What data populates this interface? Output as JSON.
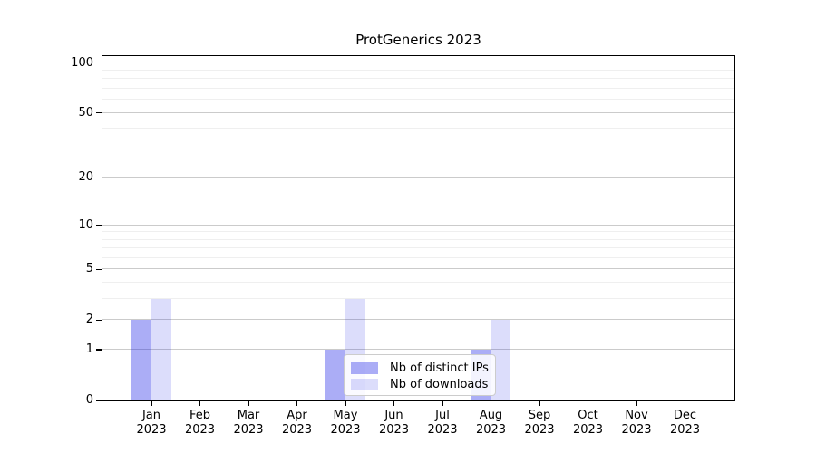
{
  "chart_data": {
    "type": "bar",
    "title": "ProtGenerics 2023",
    "categories": [
      "Jan 2023",
      "Feb 2023",
      "Mar 2023",
      "Apr 2023",
      "May 2023",
      "Jun 2023",
      "Jul 2023",
      "Aug 2023",
      "Sep 2023",
      "Oct 2023",
      "Nov 2023",
      "Dec 2023"
    ],
    "series": [
      {
        "name": "Nb of distinct IPs",
        "color": "#0a10e4",
        "alpha": 0.34,
        "values": [
          2,
          0,
          0,
          0,
          1,
          0,
          0,
          1,
          0,
          0,
          0,
          0
        ]
      },
      {
        "name": "Nb of downloads",
        "color": "#0a10e4",
        "alpha": 0.14,
        "values": [
          3,
          0,
          0,
          0,
          3,
          0,
          0,
          2,
          0,
          0,
          0,
          0
        ]
      }
    ],
    "xlabel": "",
    "ylabel": "",
    "yscale": "log1p",
    "yticks": [
      0,
      1,
      2,
      5,
      10,
      20,
      50,
      100
    ],
    "ylim": [
      0,
      110
    ],
    "grid": "horizontal major+minor (log decades)",
    "grid_major_color": "#cbcbcb",
    "grid_minor_color": "#efefef",
    "axis_color": "#000000",
    "legend_position": "lower center (inside plot)"
  }
}
